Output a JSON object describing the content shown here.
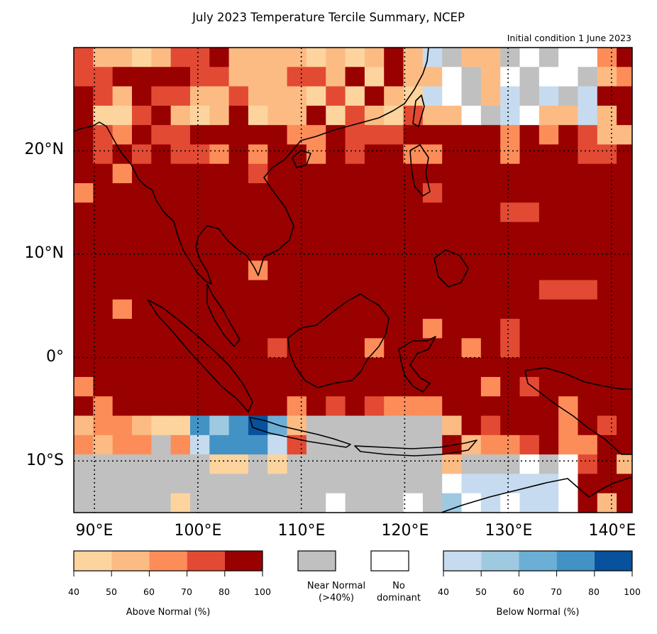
{
  "title": "July 2023 Temperature Tercile Summary, NCEP",
  "subtitle": "Initial condition 1 June 2023",
  "lat_labels": [
    "20°N",
    "10°N",
    "0°",
    "10°S"
  ],
  "lon_labels": [
    "90°E",
    "100°E",
    "110°E",
    "120°E",
    "130°E",
    "140°E"
  ],
  "extent": {
    "lon_min": 88,
    "lon_max": 142,
    "lat_min": -15,
    "lat_max": 30
  },
  "gridlines": {
    "lons": [
      90,
      100,
      110,
      120,
      130,
      140
    ],
    "lats": [
      20,
      10,
      0,
      -10
    ]
  },
  "legend": {
    "above": {
      "title": "Above Normal (%)",
      "ticks": [
        "40",
        "50",
        "60",
        "70",
        "80",
        "100"
      ],
      "colors": [
        "#fdd49e",
        "#fdbb84",
        "#fc8d59",
        "#e34a33",
        "#990000"
      ]
    },
    "near": {
      "title": "Near Normal\n(>40%)",
      "color": "#c0c0c0"
    },
    "none": {
      "title": "No\ndominant",
      "color": "#ffffff"
    },
    "below": {
      "title": "Below Normal (%)",
      "ticks": [
        "40",
        "50",
        "60",
        "70",
        "80",
        "100"
      ],
      "colors": [
        "#c6dbef",
        "#9ecae1",
        "#6baed6",
        "#4292c6",
        "#08519c"
      ]
    }
  }
}
